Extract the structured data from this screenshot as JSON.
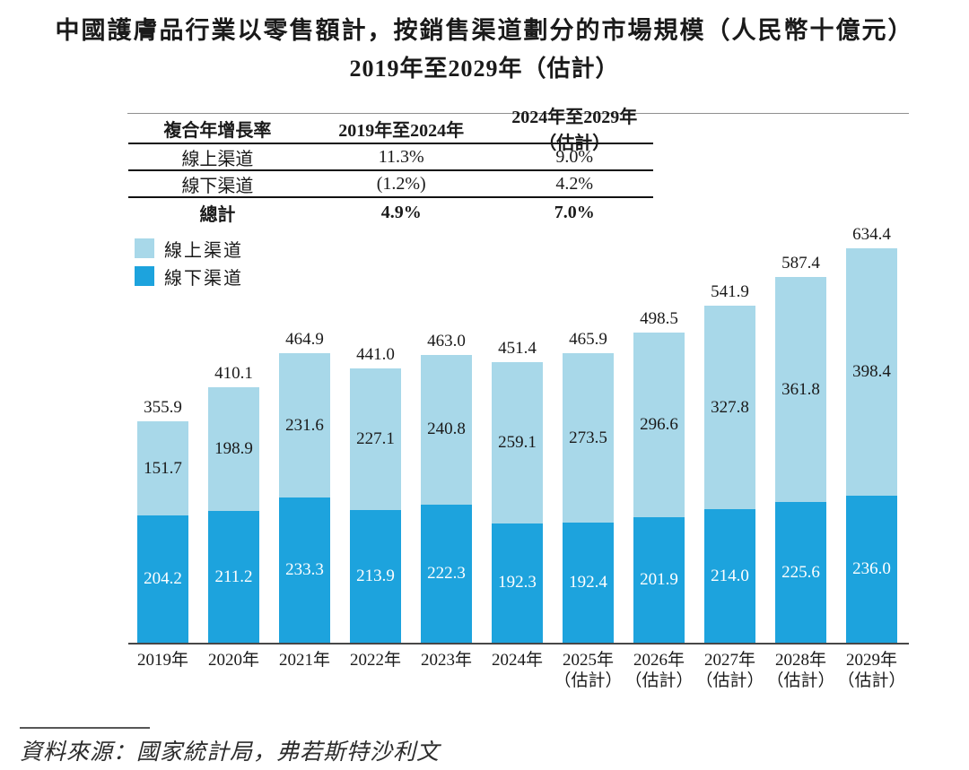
{
  "title": "中國護膚品行業以零售額計，按銷售渠道劃分的市場規模（人民幣十億元）",
  "subtitle": "2019年至2029年（估計）",
  "cagr_table": {
    "header": [
      "複合年增長率",
      "2019年至2024年",
      "2024年至2029年（估計）"
    ],
    "rows": [
      {
        "label": "線上渠道",
        "cagr_2019_2024": "11.3%",
        "cagr_2024_2029": "9.0%",
        "bold": false
      },
      {
        "label": "線下渠道",
        "cagr_2019_2024": "(1.2%)",
        "cagr_2024_2029": "4.2%",
        "bold": false
      },
      {
        "label": "總計",
        "cagr_2019_2024": "4.9%",
        "cagr_2024_2029": "7.0%",
        "bold": true
      }
    ]
  },
  "legend": [
    {
      "label": "線上渠道",
      "color": "#a8d8e9"
    },
    {
      "label": "線下渠道",
      "color": "#1da3dd"
    }
  ],
  "chart_data": {
    "type": "bar",
    "stacked": true,
    "title": "中國護膚品行業以零售額計，按銷售渠道劃分的市場規模（人民幣十億元）2019年至2029年（估計）",
    "ylabel": "人民幣十億元",
    "ylim": [
      0,
      660
    ],
    "grid": false,
    "legend_position": "top-left",
    "categories": [
      {
        "year": "2019年",
        "note": ""
      },
      {
        "year": "2020年",
        "note": ""
      },
      {
        "year": "2021年",
        "note": ""
      },
      {
        "year": "2022年",
        "note": ""
      },
      {
        "year": "2023年",
        "note": ""
      },
      {
        "year": "2024年",
        "note": ""
      },
      {
        "year": "2025年",
        "note": "（估計）"
      },
      {
        "year": "2026年",
        "note": "（估計）"
      },
      {
        "year": "2027年",
        "note": "（估計）"
      },
      {
        "year": "2028年",
        "note": "（估計）"
      },
      {
        "year": "2029年",
        "note": "（估計）"
      }
    ],
    "series": [
      {
        "name": "線上渠道",
        "color": "#a8d8e9",
        "values": [
          151.7,
          198.9,
          231.6,
          227.1,
          240.8,
          259.1,
          273.5,
          296.6,
          327.8,
          361.8,
          398.4
        ],
        "labels": [
          "151.7",
          "198.9",
          "231.6",
          "227.1",
          "240.8",
          "259.1",
          "273.5",
          "296.6",
          "327.8",
          "361.8",
          "398.4"
        ]
      },
      {
        "name": "線下渠道",
        "color": "#1da3dd",
        "values": [
          204.2,
          211.2,
          233.3,
          213.9,
          222.3,
          192.3,
          192.4,
          201.9,
          214.0,
          225.6,
          236.0
        ],
        "labels": [
          "204.2",
          "211.2",
          "233.3",
          "213.9",
          "222.3",
          "192.3",
          "192.4",
          "201.9",
          "214.0",
          "225.6",
          "236.0"
        ]
      }
    ],
    "totals": [
      355.9,
      410.1,
      464.9,
      441.0,
      463.0,
      451.4,
      465.9,
      498.5,
      541.9,
      587.4,
      634.4
    ],
    "total_labels": [
      "355.9",
      "410.1",
      "464.9",
      "441.0",
      "463.0",
      "451.4",
      "465.9",
      "498.5",
      "541.9",
      "587.4",
      "634.4"
    ]
  },
  "source": "資料來源：國家統計局，弗若斯特沙利文",
  "colors": {
    "online": "#a8d8e9",
    "offline": "#1da3dd",
    "axis": "#474747",
    "rule": "#8f8f8f",
    "text": "#1a1a1a"
  }
}
